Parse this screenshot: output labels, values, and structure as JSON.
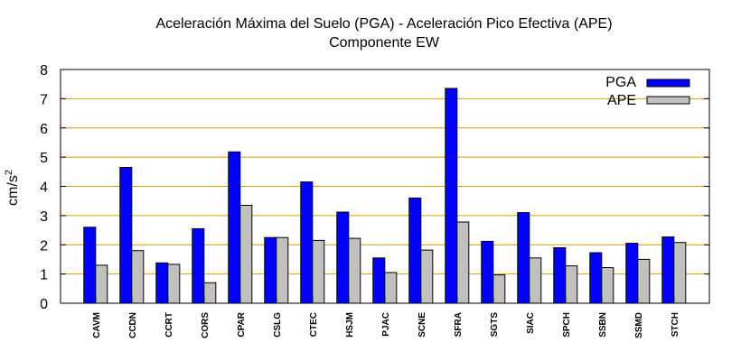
{
  "chart_data": {
    "type": "bar",
    "title": "Aceleración Máxima del Suelo (PGA) -  Aceleración Pico Efectiva (APE)",
    "subtitle": "Componente EW",
    "xlabel": "",
    "ylabel": "cm/s",
    "ylabel_superscript": "2",
    "ylim": [
      0,
      8
    ],
    "yticks": [
      0,
      1,
      2,
      3,
      4,
      5,
      6,
      7,
      8
    ],
    "grid": true,
    "legend_position": "top-right",
    "categories": [
      "CAVM",
      "CCDN",
      "CCRT",
      "CORS",
      "CPAR",
      "CSLG",
      "CTEC",
      "HSJM",
      "PJAC",
      "SCNE",
      "SFRA",
      "SGTS",
      "SIAC",
      "SPCH",
      "SSBN",
      "SSMD",
      "STCH"
    ],
    "series": [
      {
        "name": "PGA",
        "color": "#0000ff",
        "values": [
          2.6,
          4.65,
          1.38,
          2.55,
          5.18,
          2.25,
          4.15,
          3.12,
          1.55,
          3.6,
          7.35,
          2.12,
          3.1,
          1.9,
          1.73,
          2.05,
          2.27
        ]
      },
      {
        "name": "APE",
        "color": "#c0c0c0",
        "values": [
          1.3,
          1.8,
          1.33,
          0.7,
          3.35,
          2.25,
          2.15,
          2.22,
          1.05,
          1.82,
          2.78,
          0.97,
          1.55,
          1.28,
          1.22,
          1.5,
          2.08
        ]
      }
    ],
    "grid_color": "#d2a000"
  }
}
